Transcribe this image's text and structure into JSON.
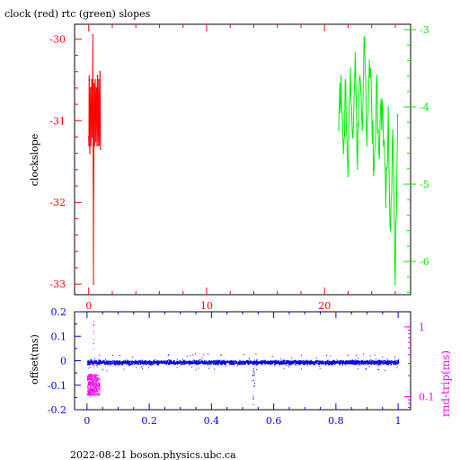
{
  "title": "clock (red) rtc (green) slopes",
  "footer": "2022-08-21 boson.physics.ubc.ca",
  "colors": {
    "red": "#ff0000",
    "green": "#00ee00",
    "blue": "#0000ff",
    "magenta": "#ff00ff",
    "black": "#000000"
  },
  "chart_data": [
    {
      "type": "line",
      "title": "clock (red) rtc (green) slopes",
      "ylabel": "clockslope",
      "xlim": [
        -1.2,
        27.3
      ],
      "ylim": [
        -33.13,
        -29.82
      ],
      "y2lim": [
        -6.43,
        -2.93
      ],
      "xticks": [
        "0",
        "10",
        "20"
      ],
      "yticks": [
        "-30",
        "-31",
        "-32",
        "-33"
      ],
      "y2ticks": [
        "-3",
        "-4",
        "-5",
        "-6"
      ],
      "series": [
        {
          "name": "clock (red)",
          "color": "#ff0000",
          "axis": "left",
          "x": [
            0.0,
            0.05,
            0.1,
            0.15,
            0.2,
            0.25,
            0.3,
            0.35,
            0.4,
            0.45,
            0.5,
            0.55,
            0.6,
            0.65,
            0.7,
            0.75,
            0.8,
            0.85,
            0.9,
            0.95,
            1.0
          ],
          "y": [
            -31.2,
            -30.5,
            -31.4,
            -30.6,
            -31.3,
            -30.5,
            -31.2,
            -29.95,
            -33.0,
            -30.55,
            -31.3,
            -30.5,
            -31.25,
            -30.6,
            -31.3,
            -30.45,
            -31.3,
            -30.5,
            -31.3,
            -30.4,
            -31.35
          ]
        },
        {
          "name": "rtc (green)",
          "color": "#00ee00",
          "axis": "right",
          "x": [
            21.2,
            21.4,
            21.6,
            21.8,
            22.0,
            22.2,
            22.4,
            22.6,
            22.8,
            23.0,
            23.2,
            23.4,
            23.6,
            23.8,
            24.0,
            24.2,
            24.4,
            24.6,
            24.8,
            25.0,
            25.2,
            25.4,
            25.6,
            25.8,
            26.0,
            26.2
          ],
          "y": [
            -4.3,
            -3.6,
            -4.6,
            -3.7,
            -4.9,
            -3.5,
            -4.4,
            -3.3,
            -4.8,
            -3.6,
            -4.3,
            -3.1,
            -4.5,
            -3.4,
            -4.0,
            -4.8,
            -3.7,
            -4.6,
            -3.9,
            -4.5,
            -5.3,
            -4.0,
            -5.6,
            -4.3,
            -6.3,
            -4.1
          ]
        }
      ]
    },
    {
      "type": "scatter",
      "ylabel": "offset(ms)",
      "y2label": "rnd-trip(ms)",
      "xlim": [
        -0.04,
        1.04
      ],
      "ylim": [
        -0.2,
        0.2
      ],
      "y2lim": [
        0.065,
        1.65
      ],
      "y2scale": "log",
      "xticks": [
        "0",
        "0.2",
        "0.4",
        "0.6",
        "0.8",
        "1"
      ],
      "yticks": [
        "0.2",
        "0.1",
        "0",
        "-0.1",
        "-0.2"
      ],
      "y2ticks": [
        "1",
        "0.1"
      ],
      "series": [
        {
          "name": "offset",
          "color": "#0000ff",
          "axis": "left",
          "x_range": [
            0.0,
            1.0
          ],
          "center": -0.005,
          "spread": 0.012
        },
        {
          "name": "rnd-trip",
          "color": "#ff00ff",
          "axis": "right",
          "x_range": [
            0.0,
            0.04
          ],
          "center": 0.15
        }
      ],
      "annotations": [
        {
          "name": "offset-dip",
          "x": 0.535,
          "y_range": [
            -0.03,
            -0.18
          ]
        },
        {
          "name": "rnd-trip-spike",
          "x": 0.02,
          "y2": 1.3
        }
      ]
    }
  ]
}
